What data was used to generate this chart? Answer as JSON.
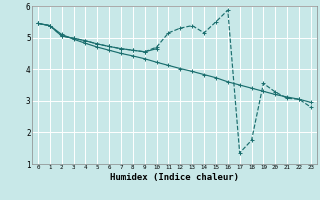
{
  "xlabel": "Humidex (Indice chaleur)",
  "background_color": "#c8e8e8",
  "grid_color": "#ffffff",
  "line_color": "#1a6e6e",
  "xlim": [
    -0.5,
    23.5
  ],
  "ylim": [
    1,
    6
  ],
  "yticks": [
    1,
    2,
    3,
    4,
    5,
    6
  ],
  "xticks": [
    0,
    1,
    2,
    3,
    4,
    5,
    6,
    7,
    8,
    9,
    10,
    11,
    12,
    13,
    14,
    15,
    16,
    17,
    18,
    19,
    20,
    21,
    22,
    23
  ],
  "series": [
    {
      "x": [
        0,
        1,
        2,
        3,
        4,
        5,
        6,
        7,
        8,
        9,
        10,
        11,
        12,
        13,
        14,
        15,
        16,
        17,
        18,
        19,
        20,
        21,
        22,
        23
      ],
      "y": [
        5.45,
        5.38,
        5.1,
        4.95,
        4.82,
        4.7,
        4.6,
        4.5,
        4.42,
        4.33,
        4.22,
        4.12,
        4.02,
        3.93,
        3.83,
        3.73,
        3.6,
        3.5,
        3.4,
        3.3,
        3.2,
        3.12,
        3.05,
        2.95
      ],
      "style": "-",
      "marker": "+"
    },
    {
      "x": [
        0,
        1,
        2,
        3,
        4,
        5,
        6,
        7,
        8,
        9,
        10,
        11,
        12,
        13,
        14,
        15,
        16,
        17,
        18,
        19,
        20,
        21,
        22,
        23
      ],
      "y": [
        5.45,
        5.38,
        5.05,
        4.98,
        4.9,
        4.8,
        4.72,
        4.65,
        4.6,
        4.55,
        4.7,
        5.15,
        5.3,
        5.38,
        5.15,
        5.5,
        5.87,
        1.35,
        1.75,
        3.55,
        3.28,
        3.08,
        3.05,
        2.8
      ],
      "style": "--",
      "marker": "+"
    },
    {
      "x": [
        0,
        1,
        2,
        3,
        4,
        5,
        6,
        7,
        8,
        9,
        10
      ],
      "y": [
        5.45,
        5.38,
        5.05,
        4.98,
        4.9,
        4.8,
        4.72,
        4.65,
        4.6,
        4.55,
        4.65
      ],
      "style": "-",
      "marker": "+"
    }
  ]
}
